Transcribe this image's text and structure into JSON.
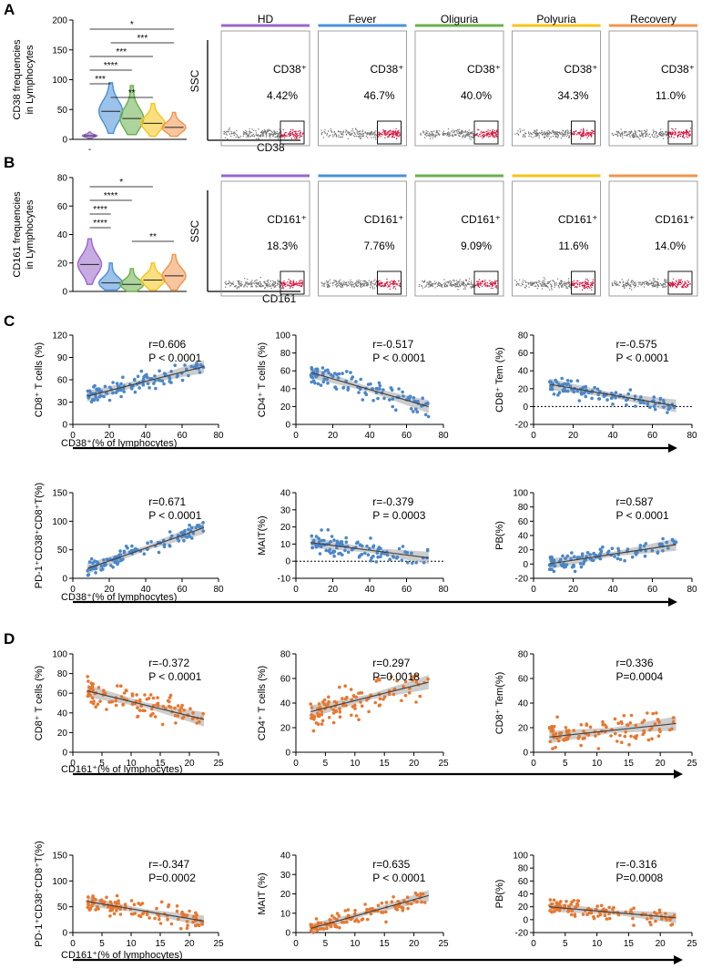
{
  "panels": {
    "A": "A",
    "B": "B",
    "C": "C",
    "D": "D"
  },
  "colors": {
    "hd": "#9966cc",
    "fever": "#4a90d9",
    "oliguria": "#6ab04c",
    "polyuria": "#f5c518",
    "recovery": "#f0954e",
    "blue_points": "#4a86c8",
    "orange_points": "#e8772e",
    "gate_events": "#777777",
    "gate_positive": "#d6163f",
    "fit_band": "#b8b8b8",
    "fit_line": "#444444"
  },
  "flow_groups": [
    "HD",
    "Fever",
    "Oliguria",
    "Polyuria",
    "Recovery"
  ],
  "axis_ticks": {
    "A_violin": [
      "0",
      "50",
      "100",
      "150",
      "200"
    ],
    "B_violin": [
      "0",
      "20",
      "40",
      "60",
      "80"
    ],
    "cd38_x": [
      "0",
      "20",
      "40",
      "60",
      "80"
    ],
    "cd161_x": [
      "0",
      "5",
      "10",
      "15",
      "20",
      "25"
    ],
    "c_cd8": [
      "0",
      "30",
      "60",
      "90",
      "120"
    ],
    "c_cd4": [
      "0",
      "20",
      "40",
      "60",
      "80",
      "100"
    ],
    "c_tem": [
      "-20",
      "0",
      "20",
      "40",
      "60",
      "80"
    ],
    "c_pd1": [
      "0",
      "50",
      "100",
      "150"
    ],
    "c_mait": [
      "-10",
      "0",
      "10",
      "20",
      "30",
      "40"
    ],
    "c_pb": [
      "-20",
      "0",
      "20",
      "40",
      "60",
      "80",
      "100"
    ],
    "d_cd8": [
      "0",
      "20",
      "40",
      "60",
      "80",
      "100"
    ],
    "d_cd4": [
      "0",
      "20",
      "40",
      "60",
      "80"
    ],
    "d_tem": [
      "0",
      "20",
      "40",
      "60",
      "80"
    ],
    "d_pd1": [
      "0",
      "50",
      "100",
      "150"
    ],
    "d_mait": [
      "0",
      "10",
      "20",
      "30",
      "40"
    ],
    "d_pb": [
      "-20",
      "0",
      "20",
      "40",
      "60",
      "80",
      "100"
    ]
  },
  "chart_data": [
    {
      "id": "A-violin",
      "type": "violin",
      "ylabel": "CD38 frequencies in Lymphocytes",
      "ylim": [
        0,
        200
      ],
      "categories": [
        "HD",
        "Fever",
        "Oliguria",
        "Polyuria",
        "Recovery"
      ],
      "medians": [
        6,
        47,
        35,
        27,
        20
      ],
      "spread": [
        [
          2,
          12
        ],
        [
          10,
          95
        ],
        [
          8,
          90
        ],
        [
          5,
          60
        ],
        [
          5,
          45
        ]
      ],
      "x_marker": "-",
      "significance": [
        {
          "pair": [
            1,
            5
          ],
          "label": "*"
        },
        {
          "pair": [
            2,
            5
          ],
          "label": "***"
        },
        {
          "pair": [
            1,
            4
          ],
          "label": "***"
        },
        {
          "pair": [
            1,
            3
          ],
          "label": "****"
        },
        {
          "pair": [
            1,
            2
          ],
          "label": "***"
        },
        {
          "pair": [
            2,
            4
          ],
          "label": "**"
        }
      ]
    },
    {
      "id": "A-flow",
      "type": "scatter",
      "xlabel": "CD38",
      "ylabel": "SSC",
      "gate": "CD38⁺",
      "groups": [
        "HD",
        "Fever",
        "Oliguria",
        "Polyuria",
        "Recovery"
      ],
      "percent_labels": [
        "4.42%",
        "46.7%",
        "40.0%",
        "34.3%",
        "11.0%"
      ]
    },
    {
      "id": "B-violin",
      "type": "violin",
      "ylabel": "CD161 frequencies in Lymphocytes",
      "ylim": [
        0,
        80
      ],
      "categories": [
        "HD",
        "Fever",
        "Oliguria",
        "Polyuria",
        "Recovery"
      ],
      "medians": [
        19,
        6,
        5,
        8,
        11
      ],
      "spread": [
        [
          5,
          37
        ],
        [
          1,
          20
        ],
        [
          0,
          16
        ],
        [
          1,
          20
        ],
        [
          1,
          26
        ]
      ],
      "significance": [
        {
          "pair": [
            1,
            4
          ],
          "label": "*"
        },
        {
          "pair": [
            1,
            3
          ],
          "label": "****"
        },
        {
          "pair": [
            1,
            2
          ],
          "label": "****"
        },
        {
          "pair": [
            1,
            2
          ],
          "label": "****"
        },
        {
          "pair": [
            3,
            5
          ],
          "label": "**"
        }
      ]
    },
    {
      "id": "B-flow",
      "type": "scatter",
      "xlabel": "CD161",
      "ylabel": "SSC",
      "gate": "CD161⁺",
      "groups": [
        "HD",
        "Fever",
        "Oliguria",
        "Polyuria",
        "Recovery"
      ],
      "percent_labels": [
        "18.3%",
        "7.76%",
        "9.09%",
        "11.6%",
        "14.0%"
      ]
    },
    {
      "id": "C",
      "type": "scatter",
      "xlabel": "CD38⁺(% of lymphocytes)",
      "xlim": [
        0,
        80
      ],
      "plots": [
        {
          "ylabel": "CD8⁺ T cells (%)",
          "ylim": [
            0,
            120
          ],
          "r": "r=0.606",
          "p": "P < 0.0001",
          "slope": 0.62,
          "intercept": 33,
          "noise": 12,
          "dotted_zero": false
        },
        {
          "ylabel": "CD4⁺ T cells (%)",
          "ylim": [
            0,
            100
          ],
          "r": "r=-0.517",
          "p": "P < 0.0001",
          "slope": -0.6,
          "intercept": 63,
          "noise": 12,
          "dotted_zero": false
        },
        {
          "ylabel": "CD8⁺ Tem (%)",
          "ylim": [
            -20,
            80
          ],
          "r": "r=-0.575",
          "p": "P < 0.0001",
          "slope": -0.38,
          "intercept": 28,
          "noise": 9,
          "dotted_zero": true
        },
        {
          "ylabel": "PD-1⁺CD38⁺CD8⁺T(%)",
          "ylim": [
            0,
            150
          ],
          "r": "r=0.671",
          "p": "P < 0.0001",
          "slope": 1.12,
          "intercept": 8,
          "noise": 14,
          "dotted_zero": false
        },
        {
          "ylabel": "MAIT(%)",
          "ylim": [
            -10,
            40
          ],
          "r": "r=-0.379",
          "p": "P = 0.0003",
          "slope": -0.14,
          "intercept": 12,
          "noise": 6,
          "dotted_zero": true
        },
        {
          "ylabel": "PB(%)",
          "ylim": [
            -20,
            100
          ],
          "r": "r=0.587",
          "p": "P < 0.0001",
          "slope": 0.42,
          "intercept": -3,
          "noise": 11,
          "dotted_zero": false
        }
      ]
    },
    {
      "id": "D",
      "type": "scatter",
      "xlabel": "CD161⁺(% of lymphocytes)",
      "xlim": [
        0,
        25
      ],
      "plots": [
        {
          "ylabel": "CD8⁺ T cells (%)",
          "ylim": [
            0,
            100
          ],
          "r": "r=-0.372",
          "p": "P < 0.0001",
          "slope": -1.45,
          "intercept": 66,
          "noise": 14,
          "dotted_zero": false
        },
        {
          "ylabel": "CD4⁺ T cells (%)",
          "ylim": [
            0,
            80
          ],
          "r": "r=0.297",
          "p": "P=0.0018",
          "slope": 1.2,
          "intercept": 30,
          "noise": 13,
          "dotted_zero": false
        },
        {
          "ylabel": "CD8⁺ Tem(%)",
          "ylim": [
            0,
            80
          ],
          "r": "r=0.336",
          "p": "P=0.0004",
          "slope": 0.55,
          "intercept": 11,
          "noise": 11,
          "dotted_zero": false
        },
        {
          "ylabel": "PD-1⁺CD38⁺CD8⁺T(%)",
          "ylim": [
            0,
            150
          ],
          "r": "r=-0.347",
          "p": "P=0.0002",
          "slope": -1.9,
          "intercept": 65,
          "noise": 20,
          "dotted_zero": false
        },
        {
          "ylabel": "MAIT (%)",
          "ylim": [
            0,
            40
          ],
          "r": "r=0.635",
          "p": "P < 0.0001",
          "slope": 0.85,
          "intercept": 0,
          "noise": 4,
          "dotted_zero": false
        },
        {
          "ylabel": "PB(%)",
          "ylim": [
            -20,
            100
          ],
          "r": "r=-0.316",
          "p": "P=0.0008",
          "slope": -0.85,
          "intercept": 22,
          "noise": 12,
          "dotted_zero": false
        }
      ]
    }
  ]
}
